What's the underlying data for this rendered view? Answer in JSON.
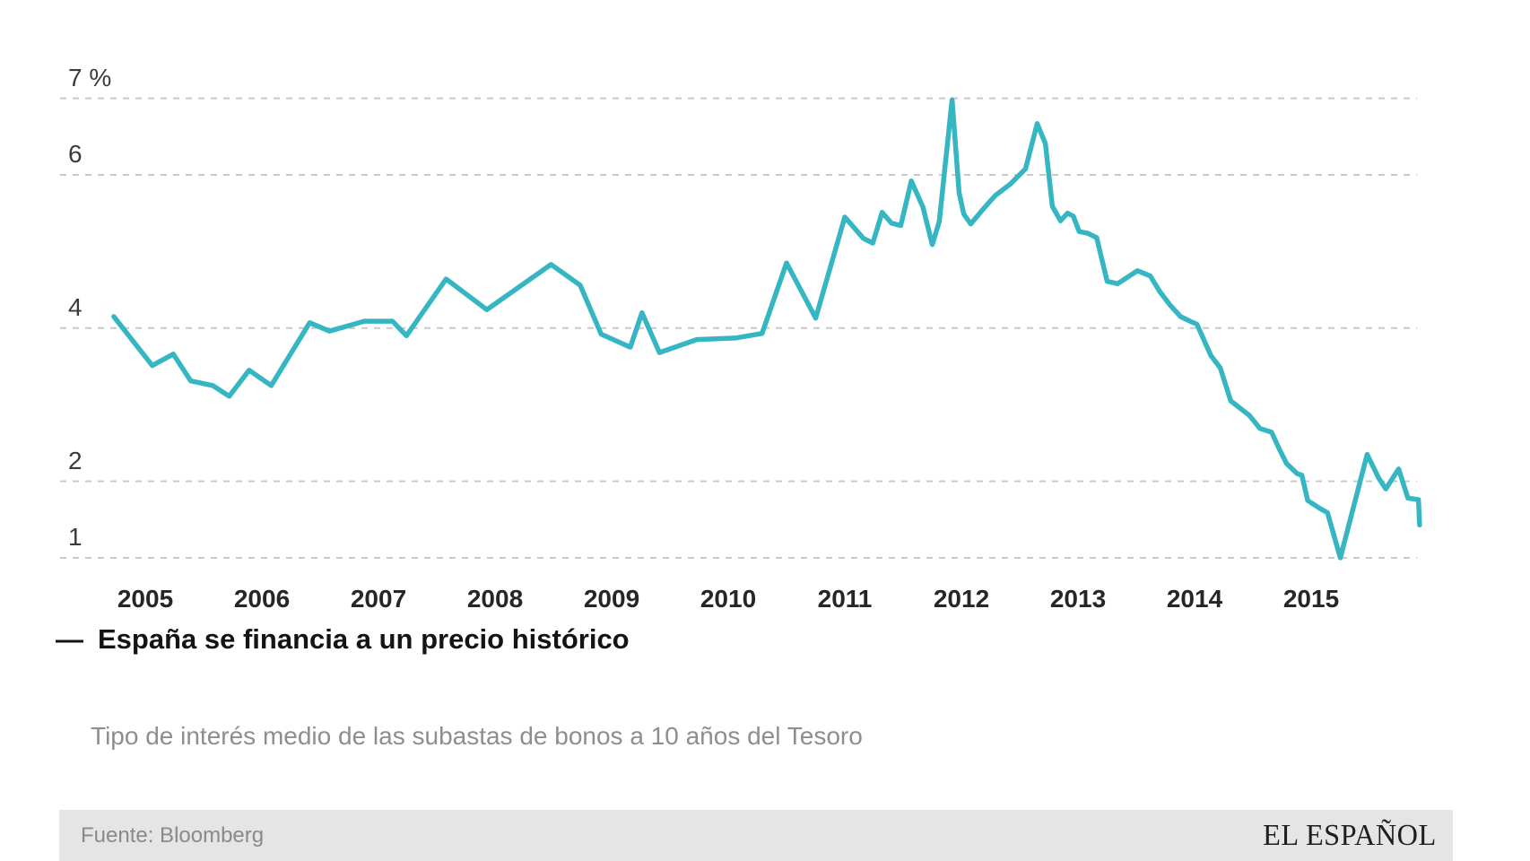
{
  "chart_data": {
    "type": "line",
    "title": "España se financia a un precio histórico",
    "subtitle": "Tipo de interés medio de las subastas de bonos a 10 años del Tesoro",
    "source": "Fuente: Bloomberg",
    "brand": "EL ESPAÑOL",
    "legend_marker": "—",
    "line_color": "#36b6c3",
    "grid_color": "#c9c9c9",
    "ylabel": "%",
    "y_axis": {
      "range": [
        1,
        7
      ],
      "ticks": [
        {
          "label": "7 %",
          "value": 7
        },
        {
          "label": "6",
          "value": 6
        },
        {
          "label": "4",
          "value": 4
        },
        {
          "label": "2",
          "value": 2
        },
        {
          "label": "1",
          "value": 1
        }
      ],
      "grid": "dashed"
    },
    "x_axis": {
      "range": [
        2004.6,
        2016.0
      ],
      "ticks": [
        "2005",
        "2006",
        "2007",
        "2008",
        "2009",
        "2010",
        "2011",
        "2012",
        "2013",
        "2014",
        "2015"
      ]
    },
    "points": [
      [
        2004.73,
        4.15
      ],
      [
        2005.06,
        3.51
      ],
      [
        2005.24,
        3.66
      ],
      [
        2005.39,
        3.31
      ],
      [
        2005.58,
        3.25
      ],
      [
        2005.72,
        3.11
      ],
      [
        2005.89,
        3.45
      ],
      [
        2006.08,
        3.25
      ],
      [
        2006.41,
        4.07
      ],
      [
        2006.58,
        3.96
      ],
      [
        2006.88,
        4.09
      ],
      [
        2007.12,
        4.09
      ],
      [
        2007.24,
        3.9
      ],
      [
        2007.58,
        4.64
      ],
      [
        2007.93,
        4.24
      ],
      [
        2008.48,
        4.83
      ],
      [
        2008.73,
        4.56
      ],
      [
        2008.91,
        3.92
      ],
      [
        2009.16,
        3.75
      ],
      [
        2009.26,
        4.2
      ],
      [
        2009.41,
        3.68
      ],
      [
        2009.73,
        3.85
      ],
      [
        2010.06,
        3.87
      ],
      [
        2010.29,
        3.93
      ],
      [
        2010.5,
        4.85
      ],
      [
        2010.75,
        4.13
      ],
      [
        2011.0,
        5.45
      ],
      [
        2011.16,
        5.17
      ],
      [
        2011.24,
        5.11
      ],
      [
        2011.32,
        5.51
      ],
      [
        2011.4,
        5.37
      ],
      [
        2011.48,
        5.34
      ],
      [
        2011.57,
        5.92
      ],
      [
        2011.67,
        5.58
      ],
      [
        2011.75,
        5.09
      ],
      [
        2011.81,
        5.39
      ],
      [
        2011.92,
        6.98
      ],
      [
        2011.98,
        5.77
      ],
      [
        2012.02,
        5.49
      ],
      [
        2012.08,
        5.36
      ],
      [
        2012.19,
        5.56
      ],
      [
        2012.29,
        5.73
      ],
      [
        2012.42,
        5.88
      ],
      [
        2012.55,
        6.08
      ],
      [
        2012.65,
        6.67
      ],
      [
        2012.72,
        6.41
      ],
      [
        2012.78,
        5.59
      ],
      [
        2012.85,
        5.4
      ],
      [
        2012.91,
        5.5
      ],
      [
        2012.96,
        5.46
      ],
      [
        2013.01,
        5.26
      ],
      [
        2013.08,
        5.24
      ],
      [
        2013.16,
        5.18
      ],
      [
        2013.25,
        4.61
      ],
      [
        2013.34,
        4.58
      ],
      [
        2013.51,
        4.75
      ],
      [
        2013.62,
        4.68
      ],
      [
        2013.7,
        4.48
      ],
      [
        2013.79,
        4.3
      ],
      [
        2013.88,
        4.15
      ],
      [
        2013.96,
        4.09
      ],
      [
        2014.02,
        4.05
      ],
      [
        2014.14,
        3.64
      ],
      [
        2014.22,
        3.48
      ],
      [
        2014.31,
        3.05
      ],
      [
        2014.47,
        2.86
      ],
      [
        2014.56,
        2.69
      ],
      [
        2014.66,
        2.64
      ],
      [
        2014.73,
        2.41
      ],
      [
        2014.79,
        2.23
      ],
      [
        2014.88,
        2.1
      ],
      [
        2014.92,
        2.08
      ],
      [
        2014.97,
        1.75
      ],
      [
        2015.08,
        1.64
      ],
      [
        2015.14,
        1.59
      ],
      [
        2015.25,
        1.0
      ],
      [
        2015.48,
        2.35
      ],
      [
        2015.58,
        2.04
      ],
      [
        2015.64,
        1.9
      ],
      [
        2015.75,
        2.16
      ],
      [
        2015.83,
        1.78
      ],
      [
        2015.92,
        1.76
      ],
      [
        2015.93,
        1.43
      ]
    ]
  }
}
